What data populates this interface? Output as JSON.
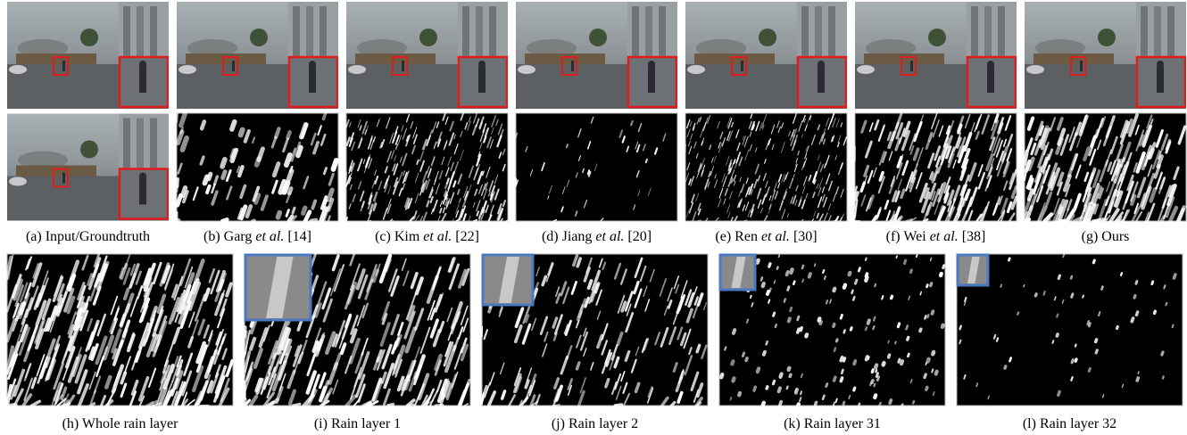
{
  "captions_top": [
    {
      "before": "(a) Input/Groundtruth"
    },
    {
      "before": "(b) Garg",
      "italic": "et al.",
      "after": "[14]"
    },
    {
      "before": "(c) Kim",
      "italic": "et al.",
      "after": "[22]"
    },
    {
      "before": "(d) Jiang",
      "italic": "et al.",
      "after": "[20]"
    },
    {
      "before": "(e) Ren",
      "italic": "et al.",
      "after": "[30]"
    },
    {
      "before": "(f) Wei",
      "italic": "et al.",
      "after": "[38]"
    },
    {
      "before": "(g) Ours"
    }
  ],
  "captions_bottom": [
    {
      "before": "(h) Whole rain layer"
    },
    {
      "before": "(i) Rain layer 1"
    },
    {
      "before": "(j) Rain layer 2"
    },
    {
      "before": "(k) Rain layer 31"
    },
    {
      "before": "(l) Rain layer 32"
    }
  ]
}
